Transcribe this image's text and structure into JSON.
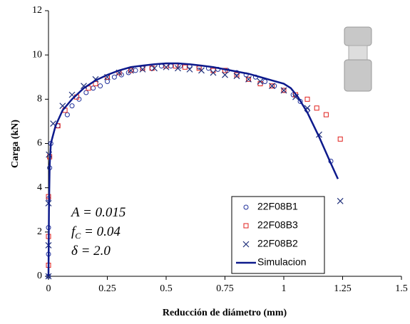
{
  "chart_data": {
    "type": "scatter",
    "x_label": "Reducción de diámetro (mm)",
    "y_label": "Carga (kN)",
    "xlim": [
      0,
      1.5
    ],
    "xticks": [
      0,
      0.25,
      0.5,
      0.75,
      1,
      1.25,
      1.5
    ],
    "ylim": [
      0,
      12
    ],
    "yticks": [
      0,
      2,
      4,
      6,
      8,
      10,
      12
    ],
    "legend": "lower right",
    "annotations": [
      [
        "A = 0.015"
      ],
      [
        "f",
        "C",
        " = 0.04"
      ],
      [
        "δ = 2.0"
      ]
    ],
    "series": [
      {
        "name": "22F08B1",
        "color": "#1f2f9a",
        "marker": "circle",
        "x": [
          0,
          0,
          0,
          0,
          0.005,
          0.01,
          0.04,
          0.08,
          0.1,
          0.13,
          0.16,
          0.19,
          0.22,
          0.25,
          0.28,
          0.31,
          0.34,
          0.37,
          0.4,
          0.44,
          0.48,
          0.52,
          0.56,
          0.6,
          0.64,
          0.68,
          0.72,
          0.76,
          0.8,
          0.84,
          0.88,
          0.92,
          0.96,
          1.0,
          1.04,
          1.07,
          1.1,
          1.2
        ],
        "values": [
          0,
          1.0,
          2.2,
          3.5,
          4.9,
          6.0,
          6.8,
          7.3,
          7.7,
          8.0,
          8.3,
          8.5,
          8.6,
          8.8,
          9.0,
          9.1,
          9.2,
          9.3,
          9.4,
          9.4,
          9.5,
          9.5,
          9.5,
          9.5,
          9.45,
          9.4,
          9.35,
          9.3,
          9.2,
          9.1,
          9.0,
          8.8,
          8.6,
          8.4,
          8.2,
          7.9,
          7.5,
          5.2
        ]
      },
      {
        "name": "22F08B3",
        "color": "#e0201c",
        "marker": "square",
        "x": [
          0,
          0,
          0,
          0.005,
          0.04,
          0.07,
          0.12,
          0.17,
          0.2,
          0.25,
          0.3,
          0.35,
          0.4,
          0.44,
          0.5,
          0.54,
          0.58,
          0.64,
          0.7,
          0.75,
          0.8,
          0.85,
          0.9,
          0.95,
          1.0,
          1.05,
          1.1,
          1.14,
          1.18,
          1.24
        ],
        "values": [
          0.5,
          1.8,
          3.6,
          5.4,
          6.8,
          7.5,
          8.1,
          8.5,
          8.7,
          9.0,
          9.2,
          9.3,
          9.4,
          9.4,
          9.5,
          9.5,
          9.45,
          9.4,
          9.3,
          9.3,
          9.1,
          8.9,
          8.7,
          8.6,
          8.4,
          8.2,
          8.0,
          7.6,
          7.3,
          6.2
        ]
      },
      {
        "name": "22F08B2",
        "color": "#1f2f7a",
        "marker": "cross",
        "x": [
          0,
          0,
          0,
          0.002,
          0.02,
          0.06,
          0.1,
          0.15,
          0.2,
          0.25,
          0.3,
          0.35,
          0.4,
          0.45,
          0.5,
          0.55,
          0.6,
          0.65,
          0.7,
          0.75,
          0.8,
          0.85,
          0.9,
          0.95,
          1.0,
          1.05,
          1.1,
          1.15,
          1.24
        ],
        "values": [
          0,
          1.4,
          3.3,
          5.5,
          6.9,
          7.7,
          8.2,
          8.6,
          8.9,
          9.0,
          9.2,
          9.3,
          9.35,
          9.4,
          9.45,
          9.4,
          9.35,
          9.3,
          9.2,
          9.1,
          9.05,
          8.9,
          8.8,
          8.6,
          8.4,
          8.1,
          7.6,
          6.4,
          3.4
        ]
      },
      {
        "name": "Simulacion",
        "color": "#0d1a8c",
        "marker": "line",
        "x": [
          0,
          0.002,
          0.005,
          0.01,
          0.03,
          0.06,
          0.1,
          0.15,
          0.2,
          0.25,
          0.3,
          0.35,
          0.4,
          0.45,
          0.5,
          0.55,
          0.6,
          0.65,
          0.7,
          0.75,
          0.8,
          0.85,
          0.9,
          0.95,
          1.0,
          1.03,
          1.06,
          1.1,
          1.15,
          1.2,
          1.23
        ],
        "values": [
          0,
          3,
          5,
          6,
          6.8,
          7.5,
          8.0,
          8.5,
          8.85,
          9.1,
          9.3,
          9.45,
          9.52,
          9.58,
          9.62,
          9.62,
          9.58,
          9.52,
          9.45,
          9.35,
          9.25,
          9.15,
          9.0,
          8.85,
          8.7,
          8.5,
          8.1,
          7.4,
          6.3,
          5.1,
          4.4
        ]
      }
    ]
  }
}
